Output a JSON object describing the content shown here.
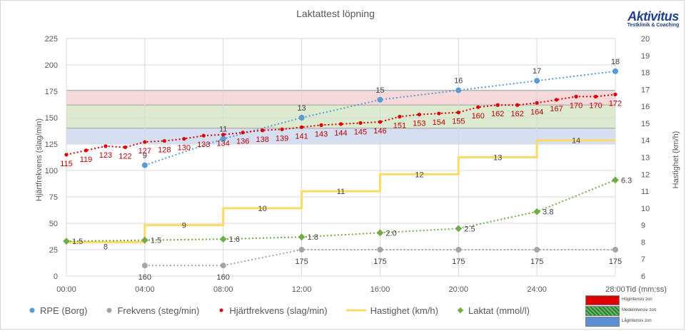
{
  "logo": {
    "main": "Aktivitus",
    "sub": "Testklinik & Coaching"
  },
  "chart_data": {
    "type": "line",
    "title": "Laktattest löpning",
    "x_tick_labels": [
      "00:00",
      "04:00",
      "08:00",
      "12:00",
      "16:00",
      "20:00",
      "24:00",
      "28:00"
    ],
    "x_range_minutes": [
      0,
      28
    ],
    "xlabel": "Tid (mm:ss)",
    "ylabel_left": "Hjärtfrekvens (slag/min)",
    "ylabel_right": "Hastighet (km/h)",
    "ylim_left": [
      0,
      225
    ],
    "ylim_right": [
      6,
      20
    ],
    "left_ticks": [
      "0",
      "25",
      "50",
      "75",
      "100",
      "125",
      "150",
      "175",
      "200",
      "225"
    ],
    "right_ticks": [
      "6",
      "7",
      "8",
      "9",
      "10",
      "11",
      "12",
      "13",
      "14",
      "15",
      "16",
      "17",
      "18",
      "19",
      "20"
    ],
    "grid": "horizontal",
    "legend_position": "bottom",
    "zones": [
      {
        "name": "Högintensiv zon",
        "from": 162,
        "to": 176,
        "color": "#f7d9d9"
      },
      {
        "name": "Medelintensiv zon",
        "from": 140,
        "to": 162,
        "color": "#dcebd0"
      },
      {
        "name": "Lågintensiv zon",
        "from": 125,
        "to": 140,
        "color": "#d6dff2"
      }
    ],
    "series": [
      {
        "name": "RPE (Borg)",
        "color": "#5b9bd5",
        "axis": "left",
        "x": [
          4,
          8,
          12,
          16,
          20,
          24,
          28
        ],
        "y": [
          105,
          130,
          150,
          167,
          176,
          185,
          194
        ],
        "labels": [
          "9",
          "11",
          "13",
          "15",
          "16",
          "17",
          "18"
        ]
      },
      {
        "name": "Frekvens (steg/min)",
        "color": "#a5a5a5",
        "axis": "left",
        "x": [
          4,
          8,
          12,
          16,
          20,
          24,
          28
        ],
        "y": [
          10,
          10,
          25,
          25,
          25,
          25,
          25
        ],
        "labels": [
          "160",
          "160",
          "175",
          "175",
          "175",
          "175",
          "175"
        ]
      },
      {
        "name": "Hjärtfrekvens (slag/min)",
        "color": "#e00000",
        "axis": "left",
        "x": [
          0,
          1,
          2,
          3,
          4,
          5,
          6,
          7,
          8,
          9,
          10,
          11,
          12,
          13,
          14,
          15,
          16,
          17,
          18,
          19,
          20,
          21,
          22,
          23,
          24,
          25,
          26,
          27,
          28
        ],
        "y": [
          115,
          119,
          123,
          122,
          127,
          128,
          130,
          133,
          134,
          136,
          138,
          139,
          141,
          143,
          144,
          145,
          146,
          151,
          153,
          154,
          155,
          160,
          162,
          162,
          164,
          167,
          170,
          170,
          172
        ],
        "labels": [
          "115",
          "119",
          "123",
          "122",
          "127",
          "128",
          "130",
          "133",
          "134",
          "136",
          "138",
          "139",
          "141",
          "143",
          "144",
          "145",
          "146",
          "151",
          "153",
          "154",
          "155",
          "160",
          "162",
          "162",
          "164",
          "167",
          "170",
          "170",
          "172"
        ]
      },
      {
        "name": "Hastighet (km/h)",
        "color": "#ffd966",
        "axis": "right",
        "steps": [
          {
            "from": 0,
            "to": 4,
            "v": 8
          },
          {
            "from": 4,
            "to": 8,
            "v": 9
          },
          {
            "from": 8,
            "to": 12,
            "v": 10
          },
          {
            "from": 12,
            "to": 16,
            "v": 11
          },
          {
            "from": 16,
            "to": 20,
            "v": 12
          },
          {
            "from": 20,
            "to": 24,
            "v": 13
          },
          {
            "from": 24,
            "to": 28,
            "v": 14
          }
        ],
        "labels": [
          "8",
          "9",
          "10",
          "11",
          "12",
          "13",
          "14"
        ]
      },
      {
        "name": "Laktat (mmol/l)",
        "color": "#70ad47",
        "axis": "left",
        "x": [
          0,
          4,
          8,
          12,
          16,
          20,
          24,
          28
        ],
        "y": [
          33,
          34,
          35,
          37,
          41,
          45,
          61,
          91
        ],
        "labels": [
          "1.5",
          "1.5",
          "1.6",
          "1.8",
          "2.0",
          "2.5",
          "3.8",
          "6.3"
        ]
      }
    ]
  }
}
